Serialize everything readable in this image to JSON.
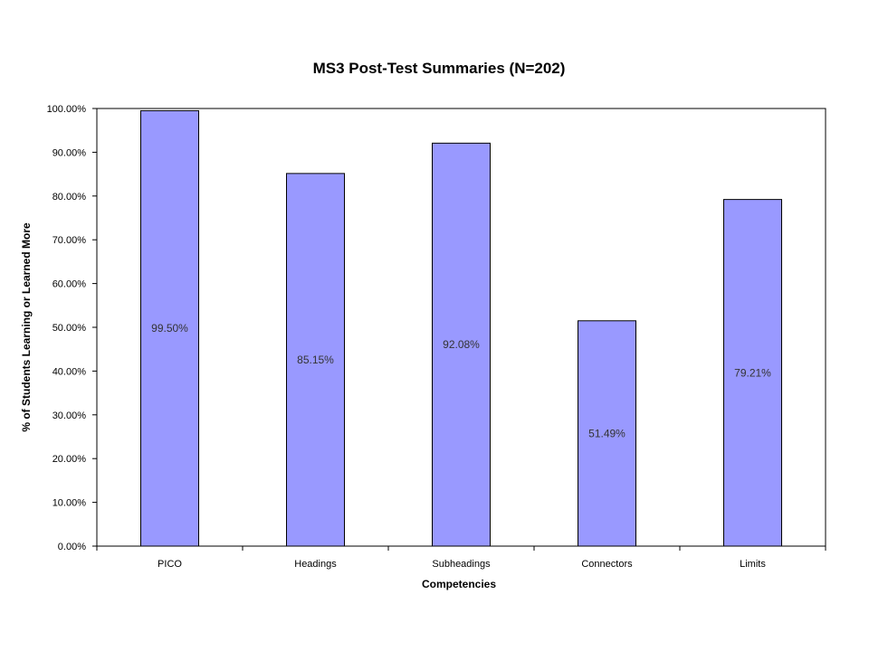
{
  "chart_data": {
    "type": "bar",
    "title": "MS3 Post-Test Summaries (N=202)",
    "xlabel": "Competencies",
    "ylabel": "% of Students Learning or Learned More",
    "categories": [
      "PICO",
      "Headings",
      "Subheadings",
      "Connectors",
      "Limits"
    ],
    "values": [
      99.5,
      85.15,
      92.08,
      51.49,
      79.21
    ],
    "data_labels": [
      "99.50%",
      "85.15%",
      "92.08%",
      "51.49%",
      "79.21%"
    ],
    "ylim": [
      0,
      100
    ],
    "yticks": [
      0,
      10,
      20,
      30,
      40,
      50,
      60,
      70,
      80,
      90,
      100
    ],
    "ytick_labels": [
      "0.00%",
      "10.00%",
      "20.00%",
      "30.00%",
      "40.00%",
      "50.00%",
      "60.00%",
      "70.00%",
      "80.00%",
      "90.00%",
      "100.00%"
    ],
    "grid": false,
    "legend": "none",
    "bar_color": "#9999ff"
  }
}
